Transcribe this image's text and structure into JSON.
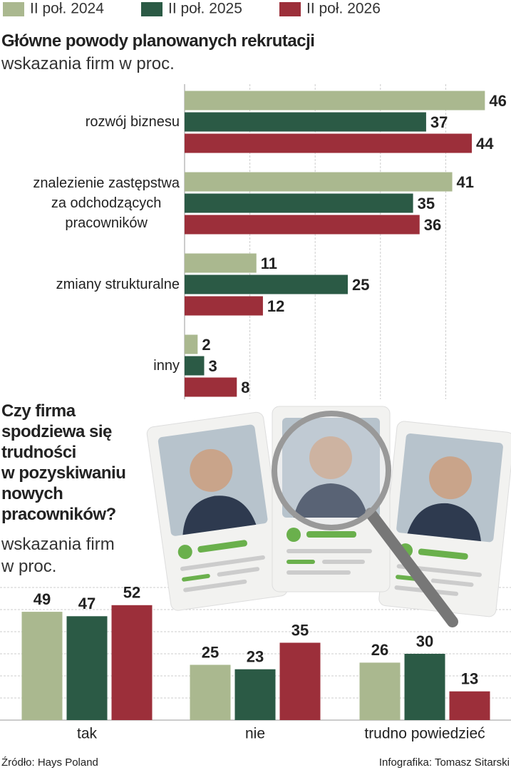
{
  "chart_data": [
    {
      "type": "hbar",
      "title": "Główne powody planowanych rekrutacji",
      "subtitle": "wskazania firm w proc.",
      "categories": [
        "rozwój biznesu",
        "znalezienie zastępstwa\nza odchodzących\npracowników",
        "zmiany strukturalne",
        "inny"
      ],
      "series": [
        {
          "name": "II poł. 2024",
          "color": "#aab88f",
          "values": [
            46,
            41,
            11,
            2
          ]
        },
        {
          "name": "II poł. 2025",
          "color": "#2b5a45",
          "values": [
            37,
            35,
            25,
            3
          ]
        },
        {
          "name": "II poł. 2026",
          "color": "#9c2f3a",
          "values": [
            44,
            36,
            12,
            8
          ]
        }
      ],
      "xlim": [
        0,
        50
      ],
      "xticks": [
        10,
        20,
        30,
        40
      ],
      "grid": true
    },
    {
      "type": "bar",
      "title": "Czy firma\nspodziewa się\ntrudności\nw pozyskiwaniu\nnowych\npracowników?",
      "subtitle": "wskazania firm\nw proc.",
      "categories": [
        "tak",
        "nie",
        "trudno powiedzieć"
      ],
      "series": [
        {
          "color": "#aab88f",
          "values": [
            49,
            25,
            26
          ]
        },
        {
          "color": "#2b5a45",
          "values": [
            47,
            23,
            30
          ]
        },
        {
          "color": "#9c2f3a",
          "values": [
            52,
            35,
            13
          ]
        }
      ],
      "ylim": [
        0,
        60
      ],
      "yticks": [
        10,
        20,
        30,
        40,
        50,
        60
      ],
      "grid": true
    }
  ],
  "footer": {
    "source": "Źródło: Hays Poland",
    "credit": "Infografika: Tomasz Sitarski"
  }
}
